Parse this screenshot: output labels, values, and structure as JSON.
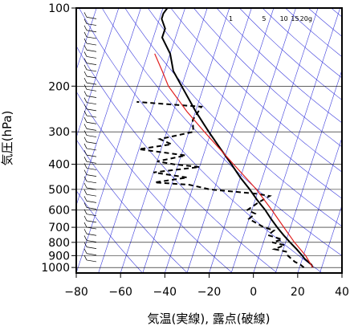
{
  "chart_data": {
    "type": "line",
    "title": "",
    "xlabel": "気温(実線), 露点(破線)",
    "ylabel": "気圧(hPa)",
    "xlim": [
      -80,
      40
    ],
    "ylim": [
      1050,
      100
    ],
    "yscale": "log",
    "xticks": [
      "−80",
      "−60",
      "−40",
      "−20",
      "0",
      "20",
      "40"
    ],
    "yticks": [
      {
        "value": 100,
        "label": "100"
      },
      {
        "value": 200,
        "label": "200"
      },
      {
        "value": 300,
        "label": "300"
      },
      {
        "value": 400,
        "label": "400"
      },
      {
        "value": 500,
        "label": "500"
      },
      {
        "value": 600,
        "label": "600"
      },
      {
        "value": 700,
        "label": "700"
      },
      {
        "value": 800,
        "label": "800"
      },
      {
        "value": 900,
        "label": "900"
      },
      {
        "value": 1000,
        "label": "1000"
      }
    ],
    "isotherm_step": 10,
    "dry_adiabat_thetas": [
      220,
      240,
      260,
      280,
      300,
      320,
      340,
      360,
      380,
      400,
      420,
      440,
      460,
      480,
      500,
      520
    ],
    "mixing_ratio_labels": [
      "1",
      "5",
      "10",
      "15",
      "20g"
    ],
    "colors": {
      "grid": "#3c3cdc",
      "temperature": "#000000",
      "dewpoint": "#000000",
      "parcel": "#e02020",
      "frame": "#000000"
    },
    "grid": true,
    "series": [
      {
        "style": "solid",
        "p": [
          1000,
          975,
          950,
          925,
          900,
          850,
          800,
          750,
          700,
          650,
          600,
          550,
          500,
          450,
          400,
          350,
          300,
          250,
          200,
          175,
          150,
          130,
          120,
          110,
          105,
          100
        ],
        "t": [
          26,
          25,
          23,
          21,
          19.5,
          16,
          12,
          8,
          4,
          0,
          -4,
          -9,
          -14,
          -20,
          -26,
          -33,
          -41,
          -50,
          -60,
          -66,
          -70,
          -76,
          -76,
          -79,
          -79,
          -78
        ]
      },
      {
        "style": "dashed",
        "p": [
          1000,
          975,
          950,
          900,
          870,
          850,
          820,
          800,
          780,
          750,
          720,
          700,
          650,
          620,
          600,
          560,
          530,
          520,
          500,
          480,
          470,
          450,
          430,
          410,
          400,
          390,
          370,
          350,
          335,
          320,
          300,
          270,
          240,
          230
        ],
        "t": [
          22,
          20,
          17,
          13,
          12,
          6,
          10,
          4,
          8,
          1,
          3,
          -2,
          -10,
          -8,
          -12,
          -8,
          -4,
          -10,
          -32,
          -42,
          -58,
          -44,
          -60,
          -40,
          -52,
          -60,
          -48,
          -70,
          -56,
          -62,
          -48,
          -50,
          -48,
          -78
        ]
      },
      {
        "style": "red",
        "p": [
          1000,
          900,
          800,
          700,
          600,
          500,
          400,
          300,
          250,
          200,
          175,
          150
        ],
        "t": [
          26,
          21,
          14,
          7,
          -1,
          -11,
          -25,
          -43,
          -54,
          -66,
          -71,
          -77
        ]
      }
    ]
  }
}
